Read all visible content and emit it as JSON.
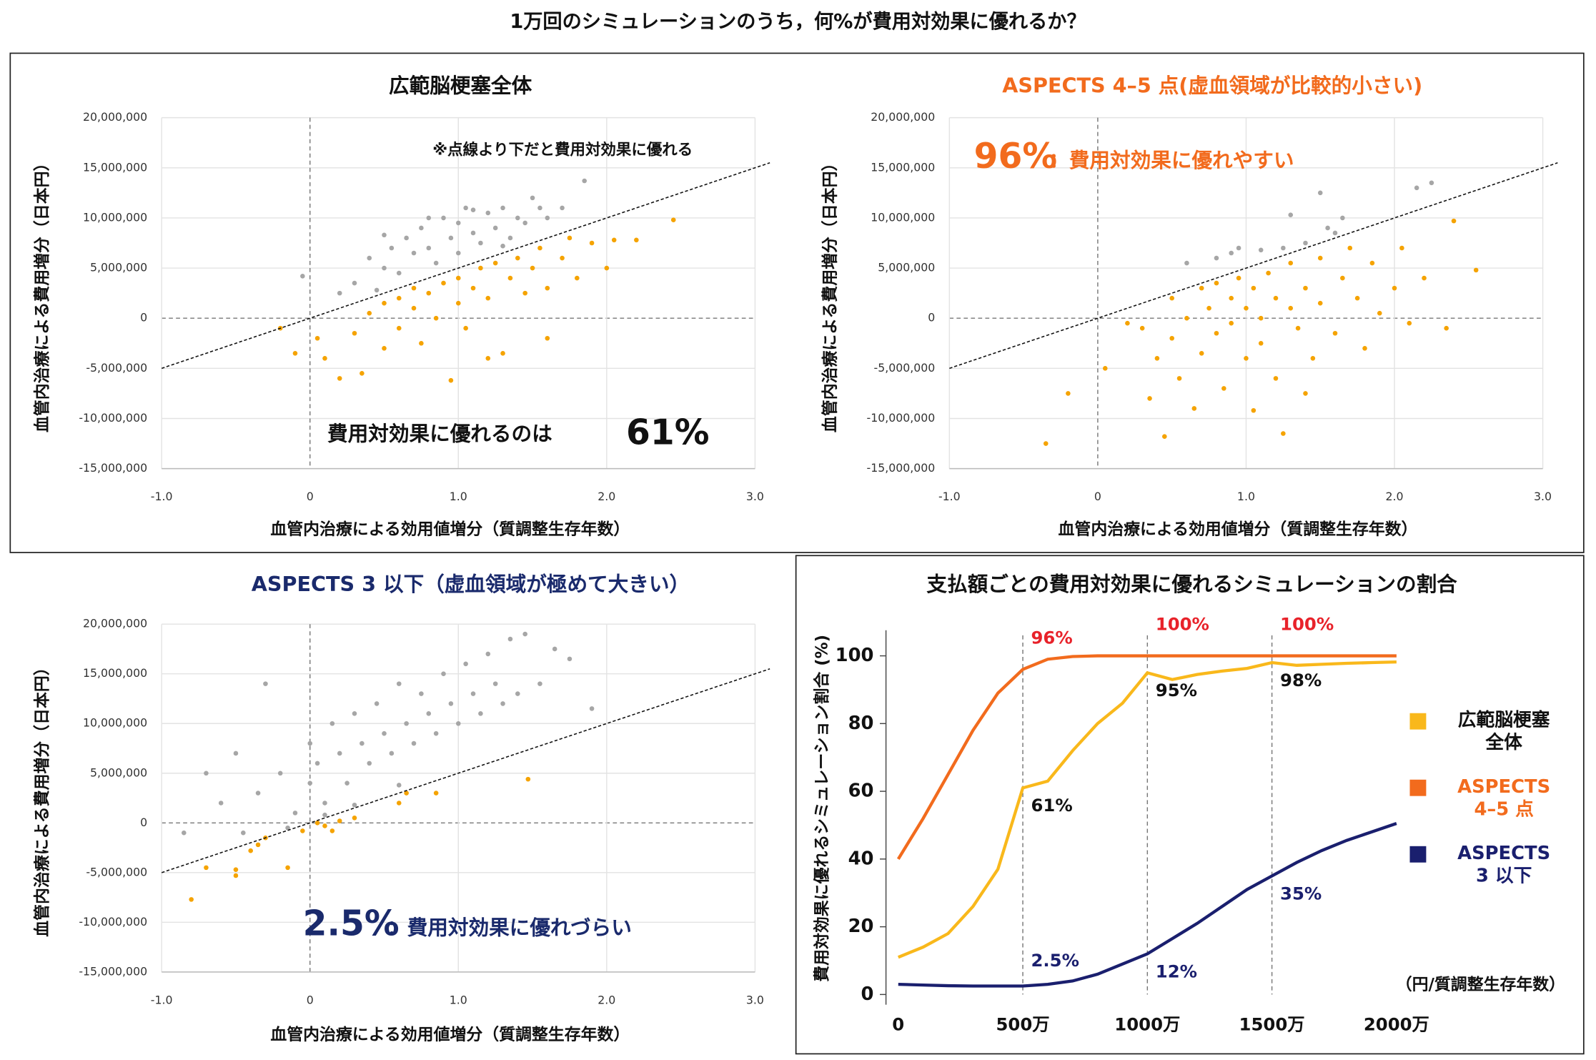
{
  "title": "1万回のシミュレーションのうち，何%が費用対効果に優れるか？",
  "chart_data": [
    {
      "type": "scatter",
      "title": "広範脳梗塞全体",
      "title_color": "#111111",
      "x_label": "血管内治療による効用値増分（質調整生存年数）",
      "y_label": "血管内治療による費用増分（日本円）",
      "note": "※点線より下だと費用対効果に優れる",
      "annotation": [
        "費用対効果に優れるのは",
        "61%"
      ],
      "annotation_color": "#111111",
      "xlim": [
        -1,
        3
      ],
      "ylim": [
        -15000000,
        20000000
      ],
      "xticks": [
        {
          "value": -1,
          "label": "-1.0"
        },
        0,
        {
          "value": 1,
          "label": "1.0"
        },
        {
          "value": 2,
          "label": "2.0"
        },
        {
          "value": 3,
          "label": "3.0"
        }
      ],
      "yticks": [
        {
          "value": -15000000,
          "label": "-15,000,000"
        },
        {
          "value": -10000000,
          "label": "-10,000,000"
        },
        {
          "value": -5000000,
          "label": "-5,000,000"
        },
        0,
        {
          "value": 5000000,
          "label": "5,000,000"
        },
        {
          "value": 10000000,
          "label": "10,000,000"
        },
        {
          "value": 15000000,
          "label": "15,000,000"
        },
        {
          "value": 20000000,
          "label": "20,000,000"
        }
      ],
      "reference_line": {
        "x": [
          -1,
          3.1
        ],
        "values": [
          -5000000,
          15500000
        ]
      },
      "series": [
        {
          "color": "#a6a6a6",
          "x": [
            0.3,
            0.4,
            0.5,
            0.55,
            0.6,
            0.65,
            0.7,
            0.75,
            0.8,
            0.85,
            0.9,
            0.95,
            1.0,
            1.0,
            1.05,
            1.1,
            1.15,
            1.2,
            1.25,
            1.3,
            1.35,
            1.4,
            1.45,
            1.5,
            1.55,
            1.6,
            1.7,
            1.85,
            0.2,
            0.45,
            -0.05,
            1.3,
            0.5,
            0.8,
            1.1
          ],
          "values": [
            3500000,
            6000000,
            5000000,
            7000000,
            4500000,
            8000000,
            6500000,
            9000000,
            7000000,
            5500000,
            10000000,
            8000000,
            6500000,
            9500000,
            11000000,
            8500000,
            7500000,
            10500000,
            9000000,
            11000000,
            8000000,
            10000000,
            9500000,
            12000000,
            11000000,
            10000000,
            11000000,
            13700000,
            2500000,
            2800000,
            4200000,
            7200000,
            8300000,
            10000000,
            10800000
          ]
        },
        {
          "color": "#f5a300",
          "x": [
            -0.2,
            -0.1,
            0.05,
            0.1,
            0.2,
            0.3,
            0.35,
            0.4,
            0.5,
            0.5,
            0.6,
            0.6,
            0.7,
            0.7,
            0.75,
            0.8,
            0.85,
            0.9,
            0.95,
            1.0,
            1.0,
            1.05,
            1.1,
            1.15,
            1.2,
            1.25,
            1.3,
            1.35,
            1.4,
            1.45,
            1.5,
            1.55,
            1.6,
            1.7,
            1.75,
            1.8,
            1.9,
            2.0,
            2.05,
            2.2,
            2.45,
            1.6,
            1.2
          ],
          "values": [
            -1000000,
            -3500000,
            -2000000,
            -4000000,
            -6000000,
            -1500000,
            -5500000,
            500000,
            -3000000,
            1500000,
            -1000000,
            2000000,
            1000000,
            3000000,
            -2500000,
            2500000,
            0,
            3500000,
            -6200000,
            1500000,
            4000000,
            -1000000,
            3000000,
            5000000,
            2000000,
            5500000,
            -3500000,
            4000000,
            6000000,
            2500000,
            5000000,
            7000000,
            3000000,
            6000000,
            8000000,
            4000000,
            7500000,
            5000000,
            7800000,
            7800000,
            9800000,
            -2000000,
            -4000000
          ]
        }
      ]
    },
    {
      "type": "scatter",
      "title": "ASPECTS 4–5 点(虚血領域が比較的小さい)",
      "title_color": "#f26b1d",
      "x_label": "血管内治療による効用値増分（質調整生存年数）",
      "y_label": "血管内治療による費用増分（日本円）",
      "annotation": [
        "96%",
        "：費用対効果に優れやすい"
      ],
      "annotation_color": "#f26b1d",
      "xlim": [
        -1,
        3
      ],
      "ylim": [
        -15000000,
        20000000
      ],
      "xticks": [
        {
          "value": -1,
          "label": "-1.0"
        },
        0,
        {
          "value": 1,
          "label": "1.0"
        },
        {
          "value": 2,
          "label": "2.0"
        },
        {
          "value": 3,
          "label": "3.0"
        }
      ],
      "yticks": [
        {
          "value": -15000000,
          "label": "-15,000,000"
        },
        {
          "value": -10000000,
          "label": "-10,000,000"
        },
        {
          "value": -5000000,
          "label": "-5,000,000"
        },
        0,
        {
          "value": 5000000,
          "label": "5,000,000"
        },
        {
          "value": 10000000,
          "label": "10,000,000"
        },
        {
          "value": 15000000,
          "label": "15,000,000"
        },
        {
          "value": 20000000,
          "label": "20,000,000"
        }
      ],
      "reference_line": {
        "x": [
          -1,
          3.1
        ],
        "values": [
          -5000000,
          15500000
        ]
      },
      "series": [
        {
          "color": "#a6a6a6",
          "x": [
            0.6,
            0.9,
            0.95,
            1.1,
            1.25,
            1.4,
            1.6,
            1.65,
            1.55,
            1.3,
            2.15,
            2.25,
            1.5,
            0.8
          ],
          "values": [
            5500000,
            6500000,
            7000000,
            6800000,
            7000000,
            7500000,
            8500000,
            10000000,
            9000000,
            10300000,
            13000000,
            13500000,
            12500000,
            6000000
          ]
        },
        {
          "color": "#f5a300",
          "x": [
            -0.35,
            -0.2,
            0.05,
            0.3,
            0.35,
            0.4,
            0.45,
            0.5,
            0.5,
            0.55,
            0.6,
            0.65,
            0.7,
            0.7,
            0.75,
            0.8,
            0.8,
            0.85,
            0.9,
            0.9,
            0.95,
            1.0,
            1.0,
            1.05,
            1.05,
            1.1,
            1.1,
            1.15,
            1.2,
            1.2,
            1.25,
            1.3,
            1.3,
            1.35,
            1.4,
            1.45,
            1.5,
            1.5,
            1.6,
            1.65,
            1.7,
            1.75,
            1.8,
            1.85,
            1.9,
            2.0,
            2.05,
            2.1,
            2.2,
            2.35,
            2.4,
            2.55,
            1.4,
            0.2
          ],
          "values": [
            -12500000,
            -7500000,
            -5000000,
            -1000000,
            -8000000,
            -4000000,
            -11800000,
            2000000,
            -2000000,
            -6000000,
            0,
            -9000000,
            3000000,
            -3500000,
            1000000,
            -1500000,
            3500000,
            -7000000,
            2000000,
            -500000,
            4000000,
            -4000000,
            1000000,
            3000000,
            -9200000,
            0,
            -2500000,
            4500000,
            2000000,
            -6000000,
            -11500000,
            1000000,
            5500000,
            -1000000,
            3000000,
            -4000000,
            6000000,
            1500000,
            -1500000,
            4000000,
            7000000,
            2000000,
            -3000000,
            5500000,
            500000,
            3000000,
            7000000,
            -500000,
            4000000,
            -1000000,
            9700000,
            4800000,
            -7500000,
            -500000
          ]
        }
      ]
    },
    {
      "type": "scatter",
      "title": "ASPECTS 3 以下（虚血領域が極めて大きい）",
      "title_color": "#1a2a6c",
      "x_label": "血管内治療による効用値増分（質調整生存年数）",
      "y_label": "血管内治療による費用増分（日本円）",
      "annotation": [
        "2.5%",
        "：費用対効果に優れづらい"
      ],
      "annotation_color": "#1a2a6c",
      "xlim": [
        -1,
        3
      ],
      "ylim": [
        -15000000,
        20000000
      ],
      "xticks": [
        {
          "value": -1,
          "label": "-1.0"
        },
        0,
        {
          "value": 1,
          "label": "1.0"
        },
        {
          "value": 2,
          "label": "2.0"
        },
        {
          "value": 3,
          "label": "3.0"
        }
      ],
      "yticks": [
        {
          "value": -15000000,
          "label": "-15,000,000"
        },
        {
          "value": -10000000,
          "label": "-10,000,000"
        },
        {
          "value": -5000000,
          "label": "-5,000,000"
        },
        0,
        {
          "value": 5000000,
          "label": "5,000,000"
        },
        {
          "value": 10000000,
          "label": "10,000,000"
        },
        {
          "value": 15000000,
          "label": "15,000,000"
        },
        {
          "value": 20000000,
          "label": "20,000,000"
        }
      ],
      "reference_line": {
        "x": [
          -1,
          3.1
        ],
        "values": [
          -5000000,
          15500000
        ]
      },
      "series": [
        {
          "color": "#a6a6a6",
          "x": [
            -0.85,
            -0.7,
            -0.6,
            -0.5,
            -0.45,
            -0.35,
            -0.3,
            -0.2,
            -0.1,
            0,
            0,
            0.05,
            0.1,
            0.15,
            0.2,
            0.25,
            0.3,
            0.35,
            0.4,
            0.45,
            0.5,
            0.55,
            0.6,
            0.65,
            0.7,
            0.75,
            0.8,
            0.85,
            0.9,
            0.95,
            1.0,
            1.05,
            1.1,
            1.15,
            1.2,
            1.25,
            1.3,
            1.35,
            1.4,
            1.45,
            1.55,
            1.65,
            1.75,
            1.9,
            0.3,
            0.6,
            0.1,
            -0.15
          ],
          "values": [
            -1000000,
            5000000,
            2000000,
            7000000,
            -1000000,
            3000000,
            14000000,
            5000000,
            1000000,
            4000000,
            8000000,
            6000000,
            2000000,
            10000000,
            7000000,
            4000000,
            11000000,
            8000000,
            6000000,
            12000000,
            9000000,
            7000000,
            14000000,
            10000000,
            8000000,
            13000000,
            11000000,
            9000000,
            15000000,
            12000000,
            10000000,
            16000000,
            13000000,
            11000000,
            17000000,
            14000000,
            12000000,
            18500000,
            13000000,
            19000000,
            14000000,
            17500000,
            16500000,
            11500000,
            1800000,
            3800000,
            800000,
            -500000
          ]
        },
        {
          "color": "#f5a300",
          "x": [
            -0.8,
            -0.7,
            -0.5,
            -0.5,
            -0.4,
            -0.35,
            -0.3,
            -0.15,
            -0.05,
            0.05,
            0.1,
            0.2,
            0.3,
            0.6,
            0.65,
            0.85,
            1.47,
            0.15
          ],
          "values": [
            -7700000,
            -4500000,
            -4700000,
            -5300000,
            -2800000,
            -2200000,
            -1500000,
            -4500000,
            -800000,
            0,
            -300000,
            200000,
            500000,
            2000000,
            3000000,
            3000000,
            4400000,
            -800000
          ]
        }
      ]
    },
    {
      "type": "line",
      "title": "支払額ごとの費用対効果に優れるシミュレーションの割合",
      "y_label": "費用対効果に優れるシミュレーション割合 (%)",
      "x_unit": "（円/質調整生存年数）",
      "xlim": [
        0,
        2000
      ],
      "ylim": [
        0,
        100
      ],
      "xticks": [
        0,
        {
          "value": 500,
          "label": "500万"
        },
        {
          "value": 1000,
          "label": "1000万"
        },
        {
          "value": 1500,
          "label": "1500万"
        },
        {
          "value": 2000,
          "label": "2000万"
        }
      ],
      "yticks": [
        0,
        20,
        40,
        60,
        80,
        100
      ],
      "x": [
        0,
        100,
        200,
        300,
        400,
        500,
        600,
        700,
        800,
        900,
        1000,
        1100,
        1200,
        1300,
        1400,
        1500,
        1600,
        1700,
        1800,
        1900,
        2000
      ],
      "series": [
        {
          "name": "広範脳梗塞\n全体",
          "color": "#f9b81b",
          "values": [
            11,
            14,
            18,
            26,
            37,
            61,
            63,
            72,
            80,
            86,
            95,
            93,
            94.5,
            95.5,
            96.3,
            98,
            97.2,
            97.5,
            97.8,
            98,
            98.2
          ],
          "value_labels": [
            null,
            null,
            null,
            null,
            null,
            "61%",
            null,
            null,
            null,
            null,
            "95%",
            null,
            null,
            null,
            null,
            "98%",
            null,
            null,
            null,
            null,
            null
          ]
        },
        {
          "name": "ASPECTS\n4–5 点",
          "color": "#f26b1d",
          "values": [
            40,
            52,
            65,
            78,
            89,
            96,
            99,
            99.8,
            100,
            100,
            100,
            100,
            100,
            100,
            100,
            100,
            100,
            100,
            100,
            100,
            100
          ],
          "value_labels": [
            null,
            null,
            null,
            null,
            null,
            "96%",
            null,
            null,
            null,
            null,
            "100%",
            null,
            null,
            null,
            null,
            "100%",
            null,
            null,
            null,
            null,
            null
          ]
        },
        {
          "name": "ASPECTS\n3 以下",
          "color": "#1a1f6e",
          "values": [
            3,
            2.8,
            2.6,
            2.5,
            2.5,
            2.5,
            3,
            4,
            6,
            9,
            12,
            16.5,
            21,
            26,
            31,
            35,
            39,
            42.5,
            45.5,
            48,
            50.5
          ],
          "value_labels": [
            null,
            null,
            null,
            null,
            null,
            "2.5%",
            null,
            null,
            null,
            null,
            "12%",
            null,
            null,
            null,
            null,
            "35%",
            null,
            null,
            null,
            null,
            null
          ]
        }
      ]
    }
  ]
}
